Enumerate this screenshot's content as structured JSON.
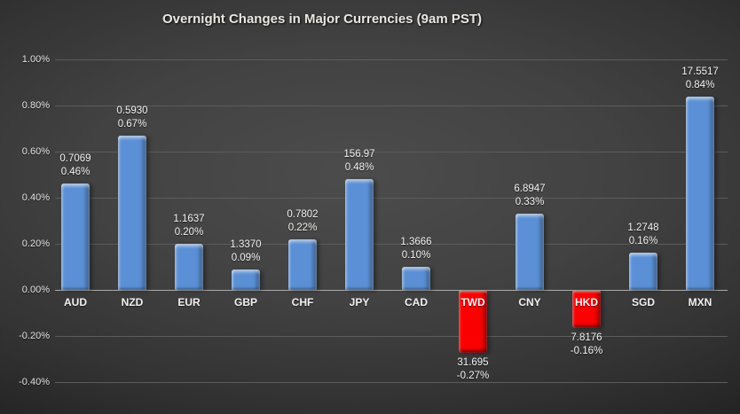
{
  "chart_data": {
    "type": "bar",
    "title": "Overnight Changes in Major Currencies (9am PST)",
    "xlabel": "",
    "ylabel": "",
    "categories": [
      "AUD",
      "NZD",
      "EUR",
      "GBP",
      "CHF",
      "JPY",
      "CAD",
      "TWD",
      "CNY",
      "HKD",
      "SGD",
      "MXN"
    ],
    "series": [
      {
        "name": "percent_change",
        "values": [
          0.46,
          0.67,
          0.2,
          0.09,
          0.22,
          0.48,
          0.1,
          -0.27,
          0.33,
          -0.16,
          0.16,
          0.84
        ]
      }
    ],
    "rate_labels": [
      "0.7069",
      "0.5930",
      "1.1637",
      "1.3370",
      "0.7802",
      "156.97",
      "1.3666",
      "31.695",
      "6.8947",
      "7.8176",
      "1.2748",
      "17.5517"
    ],
    "pct_labels": [
      "0.46%",
      "0.67%",
      "0.20%",
      "0.09%",
      "0.22%",
      "0.48%",
      "0.10%",
      "-0.27%",
      "0.33%",
      "-0.16%",
      "0.16%",
      "0.84%"
    ],
    "y_ticks": [
      "1.00%",
      "0.80%",
      "0.60%",
      "0.40%",
      "0.20%",
      "0.00%",
      "-0.20%",
      "-0.40%"
    ],
    "ylim": [
      -0.4,
      1.0
    ],
    "grid": "horizontal",
    "legend": "none",
    "colors": {
      "positive_bar": "#5b90d6",
      "negative_bar": "#fb0000",
      "gridline": "#5c5c5c",
      "zero_axis": "#aaaaaa",
      "label_text": "#f4f4f4",
      "title_text": "#e9e7e1"
    }
  }
}
